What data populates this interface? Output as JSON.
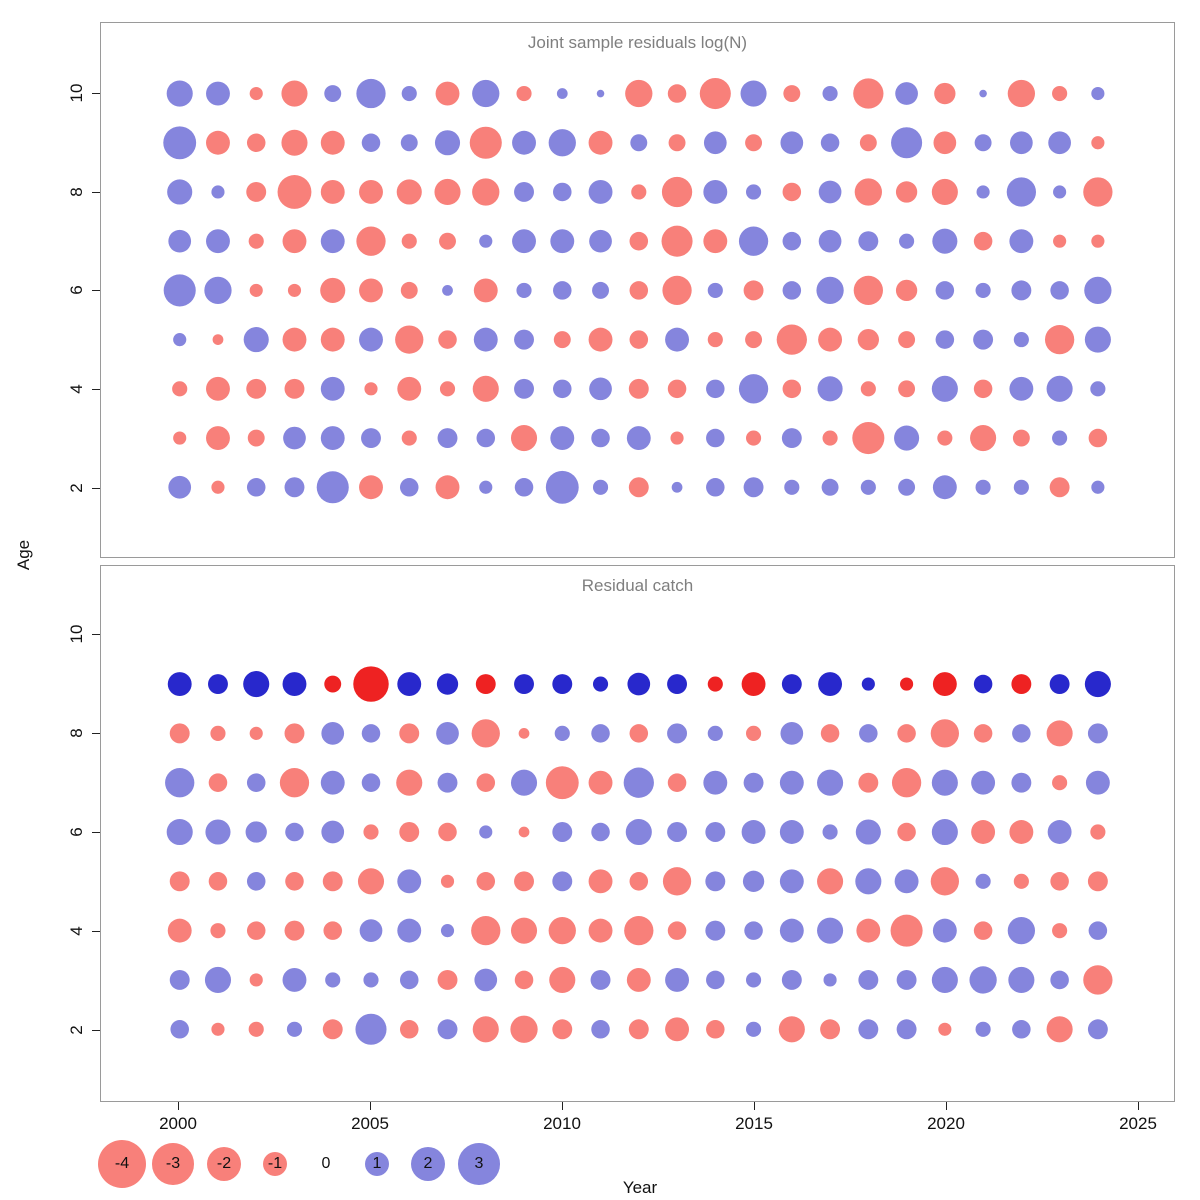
{
  "figure": {
    "xlabel": "Year",
    "ylabel": "Age",
    "x_ticks": [
      2000,
      2005,
      2010,
      2015,
      2020,
      2025
    ],
    "y_ticks": [
      2,
      4,
      6,
      8,
      10
    ],
    "colors": {
      "negative": "#f8807a",
      "positive": "#8585dd",
      "negative_strong": "#ee2222",
      "positive_strong": "#2828cc",
      "axis": "#222222",
      "panel_border": "#9a9a9a",
      "title_text": "#7f7f7f"
    },
    "legend": {
      "values": [
        -4,
        -3,
        -2,
        -1,
        0,
        1,
        2,
        3
      ]
    }
  },
  "chart_data": [
    {
      "type": "scatter",
      "subtype": "bubble-residuals",
      "title": "Joint sample residuals log(N)",
      "xlabel": "Year",
      "ylabel": "Age",
      "xlim": [
        1999,
        2025.5
      ],
      "ylim": [
        1,
        11
      ],
      "x_years": [
        2000,
        2001,
        2002,
        2003,
        2004,
        2005,
        2006,
        2007,
        2008,
        2009,
        2010,
        2011,
        2012,
        2013,
        2014,
        2015,
        2016,
        2017,
        2018,
        2019,
        2020,
        2021,
        2022,
        2023,
        2024
      ],
      "ages": [
        2,
        3,
        4,
        5,
        6,
        7,
        8,
        9,
        10
      ],
      "values_by_age": {
        "2": [
          0.9,
          -0.3,
          0.6,
          0.7,
          1.8,
          -1.0,
          0.6,
          -1.0,
          0.3,
          0.6,
          1.9,
          0.4,
          -0.7,
          0.2,
          0.6,
          0.7,
          0.4,
          0.5,
          0.4,
          0.5,
          1.0,
          0.4,
          0.4,
          -0.7,
          0.3
        ],
        "3": [
          -0.3,
          -1.0,
          -0.5,
          0.9,
          1.0,
          0.7,
          -0.4,
          0.7,
          0.6,
          -1.2,
          1.0,
          0.6,
          1.0,
          -0.3,
          0.6,
          -0.4,
          0.7,
          -0.4,
          -1.8,
          1.1,
          -0.4,
          -1.2,
          -0.5,
          0.4,
          -0.6
        ],
        "4": [
          -0.4,
          -1.0,
          -0.7,
          -0.7,
          1.0,
          -0.3,
          -1.0,
          -0.4,
          -1.2,
          0.7,
          0.6,
          0.9,
          -0.7,
          -0.6,
          0.6,
          1.5,
          -0.6,
          1.1,
          -0.4,
          -0.5,
          1.2,
          -0.6,
          1.0,
          1.2,
          0.4
        ],
        "5": [
          0.3,
          -0.2,
          1.1,
          -1.0,
          -1.0,
          1.0,
          -1.4,
          -0.6,
          1.0,
          0.7,
          -0.5,
          -1.0,
          -0.6,
          1.0,
          -0.4,
          -0.5,
          -1.6,
          -1.0,
          -0.8,
          -0.5,
          0.6,
          0.7,
          0.4,
          -1.5,
          1.2
        ],
        "6": [
          1.8,
          1.3,
          -0.3,
          -0.3,
          -1.1,
          -1.0,
          -0.5,
          0.2,
          -1.0,
          0.4,
          0.6,
          0.5,
          -0.6,
          -1.5,
          0.4,
          -0.7,
          0.6,
          1.3,
          -1.5,
          -0.8,
          0.6,
          0.4,
          0.7,
          0.6,
          1.3
        ],
        "7": [
          0.9,
          1.0,
          -0.4,
          -1.0,
          1.0,
          -1.5,
          -0.4,
          -0.5,
          0.3,
          1.0,
          1.0,
          0.9,
          -0.6,
          -1.7,
          -1.0,
          1.5,
          0.6,
          0.9,
          0.7,
          0.4,
          1.1,
          -0.6,
          1.0,
          -0.3,
          -0.3
        ],
        "8": [
          1.1,
          0.3,
          -0.7,
          -2.0,
          -1.0,
          -1.0,
          -1.1,
          -1.2,
          -1.3,
          0.7,
          0.6,
          1.0,
          -0.4,
          -1.6,
          1.0,
          0.4,
          -0.6,
          0.9,
          -1.3,
          -0.8,
          -1.2,
          0.3,
          1.5,
          0.3,
          -1.5
        ],
        "9": [
          1.9,
          -1.0,
          -0.6,
          -1.2,
          -1.0,
          0.6,
          0.5,
          1.1,
          -1.8,
          1.0,
          1.3,
          -1.0,
          0.5,
          -0.5,
          0.9,
          -0.5,
          0.9,
          0.6,
          -0.5,
          1.7,
          -0.9,
          0.5,
          0.9,
          0.9,
          -0.3
        ],
        "10": [
          1.2,
          1.0,
          -0.3,
          -1.2,
          0.5,
          1.5,
          0.4,
          -1.0,
          1.3,
          -0.4,
          0.2,
          0.1,
          -1.3,
          -0.6,
          -1.7,
          1.2,
          -0.5,
          0.4,
          -1.6,
          0.9,
          -0.8,
          0.1,
          -1.3,
          -0.4,
          0.3
        ]
      },
      "strong_color_ages": []
    },
    {
      "type": "scatter",
      "subtype": "bubble-residuals",
      "title": "Residual catch",
      "xlabel": "Year",
      "ylabel": "Age",
      "xlim": [
        1999,
        2025.5
      ],
      "ylim": [
        1,
        11
      ],
      "x_years": [
        2000,
        2001,
        2002,
        2003,
        2004,
        2005,
        2006,
        2007,
        2008,
        2009,
        2010,
        2011,
        2012,
        2013,
        2014,
        2015,
        2016,
        2017,
        2018,
        2019,
        2020,
        2021,
        2022,
        2023,
        2024
      ],
      "ages": [
        2,
        3,
        4,
        5,
        6,
        7,
        8,
        9
      ],
      "values_by_age": {
        "2": [
          0.6,
          -0.3,
          -0.4,
          0.4,
          -0.7,
          1.7,
          -0.6,
          0.7,
          -1.2,
          -1.3,
          -0.7,
          0.6,
          -0.7,
          -1.0,
          -0.6,
          0.4,
          -1.2,
          -0.7,
          0.7,
          0.7,
          -0.3,
          0.4,
          0.6,
          -1.2,
          0.7
        ],
        "3": [
          0.7,
          1.2,
          -0.3,
          1.0,
          0.4,
          0.4,
          0.6,
          -0.7,
          0.9,
          -0.6,
          -1.2,
          0.7,
          -1.0,
          1.0,
          0.6,
          0.4,
          0.7,
          0.3,
          0.7,
          0.7,
          1.2,
          1.3,
          1.2,
          0.6,
          -1.5
        ],
        "4": [
          -1.0,
          -0.4,
          -0.6,
          -0.7,
          -0.6,
          0.9,
          1.0,
          0.3,
          -1.5,
          -1.2,
          -1.3,
          -1.0,
          -1.5,
          -0.6,
          0.7,
          0.6,
          1.0,
          1.2,
          -1.0,
          -1.8,
          1.0,
          -0.6,
          1.3,
          -0.4,
          0.6
        ],
        "5": [
          -0.7,
          -0.6,
          0.6,
          -0.6,
          -0.7,
          -1.2,
          1.0,
          -0.3,
          -0.6,
          -0.7,
          0.7,
          -1.0,
          -0.6,
          -1.4,
          0.7,
          0.8,
          1.0,
          -1.2,
          1.2,
          1.0,
          -1.4,
          0.4,
          -0.4,
          -0.6,
          -0.7
        ],
        "6": [
          1.2,
          1.1,
          0.8,
          0.6,
          0.9,
          -0.4,
          -0.7,
          -0.6,
          0.3,
          -0.2,
          0.7,
          0.6,
          1.2,
          0.7,
          0.7,
          1.0,
          1.0,
          0.4,
          1.1,
          -0.6,
          1.2,
          -1.0,
          -1.0,
          1.0,
          -0.4
        ],
        "7": [
          1.5,
          -0.6,
          0.6,
          -1.5,
          1.0,
          0.6,
          -1.2,
          0.7,
          -0.6,
          1.2,
          -1.9,
          -1.0,
          1.6,
          -0.6,
          1.0,
          0.7,
          1.0,
          1.2,
          -0.7,
          -1.5,
          1.2,
          1.0,
          0.7,
          -0.4,
          1.0
        ],
        "8": [
          -0.7,
          -0.4,
          -0.3,
          -0.7,
          0.9,
          0.6,
          -0.7,
          0.9,
          -1.4,
          -0.2,
          0.4,
          0.6,
          -0.6,
          0.7,
          0.4,
          -0.4,
          0.9,
          -0.6,
          0.6,
          -0.6,
          -1.4,
          -0.6,
          0.6,
          -1.2,
          0.7
        ],
        "9": [
          1.0,
          0.7,
          1.2,
          1.0,
          -0.5,
          -2.2,
          1.0,
          0.8,
          -0.7,
          0.7,
          0.7,
          0.4,
          0.9,
          0.7,
          -0.4,
          -1.0,
          0.7,
          1.0,
          0.3,
          -0.3,
          -1.0,
          0.6,
          -0.7,
          0.7,
          1.2
        ]
      },
      "strong_color_ages": [
        9
      ]
    }
  ]
}
